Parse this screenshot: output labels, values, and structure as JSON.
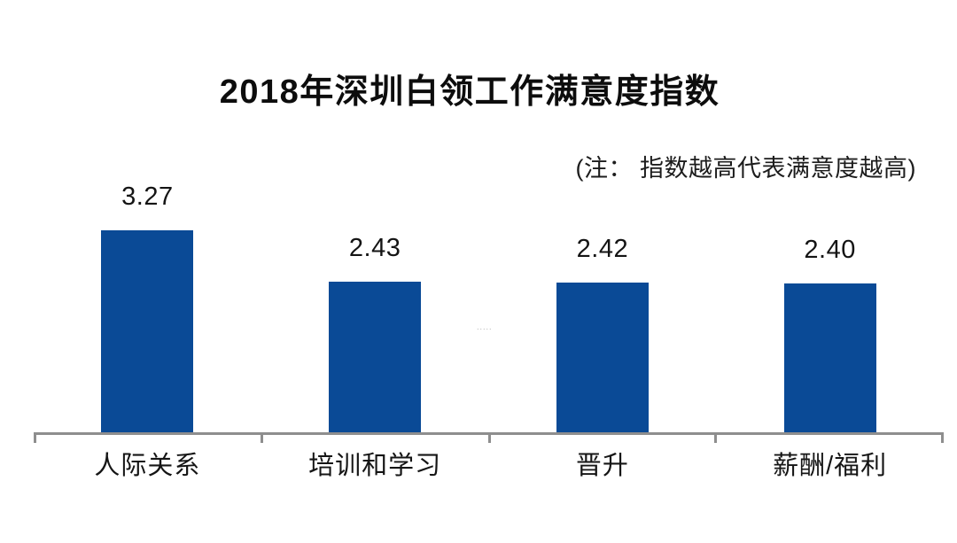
{
  "title": "2018年深圳白领工作满意度指数",
  "note": "(注： 指数越高代表满意度越高)",
  "artifact_mark": ".....",
  "colors": {
    "bar": "#0a4a96",
    "axis": "#8e8e8e",
    "text": "#111111",
    "background": "#ffffff"
  },
  "chart_data": {
    "type": "bar",
    "title": "2018年深圳白领工作满意度指数",
    "annotation": "(注： 指数越高代表满意度越高)",
    "categories": [
      "人际关系",
      "培训和学习",
      "晋升",
      "薪酬/福利"
    ],
    "values": [
      3.27,
      2.43,
      2.42,
      2.4
    ],
    "value_labels": [
      "3.27",
      "2.43",
      "2.42",
      "2.40"
    ],
    "xlabel": "",
    "ylabel": "",
    "ylim": [
      0,
      3.5
    ],
    "grid": false,
    "legend": false,
    "bar_color": "#0a4a96",
    "axis_ticks": 5
  }
}
